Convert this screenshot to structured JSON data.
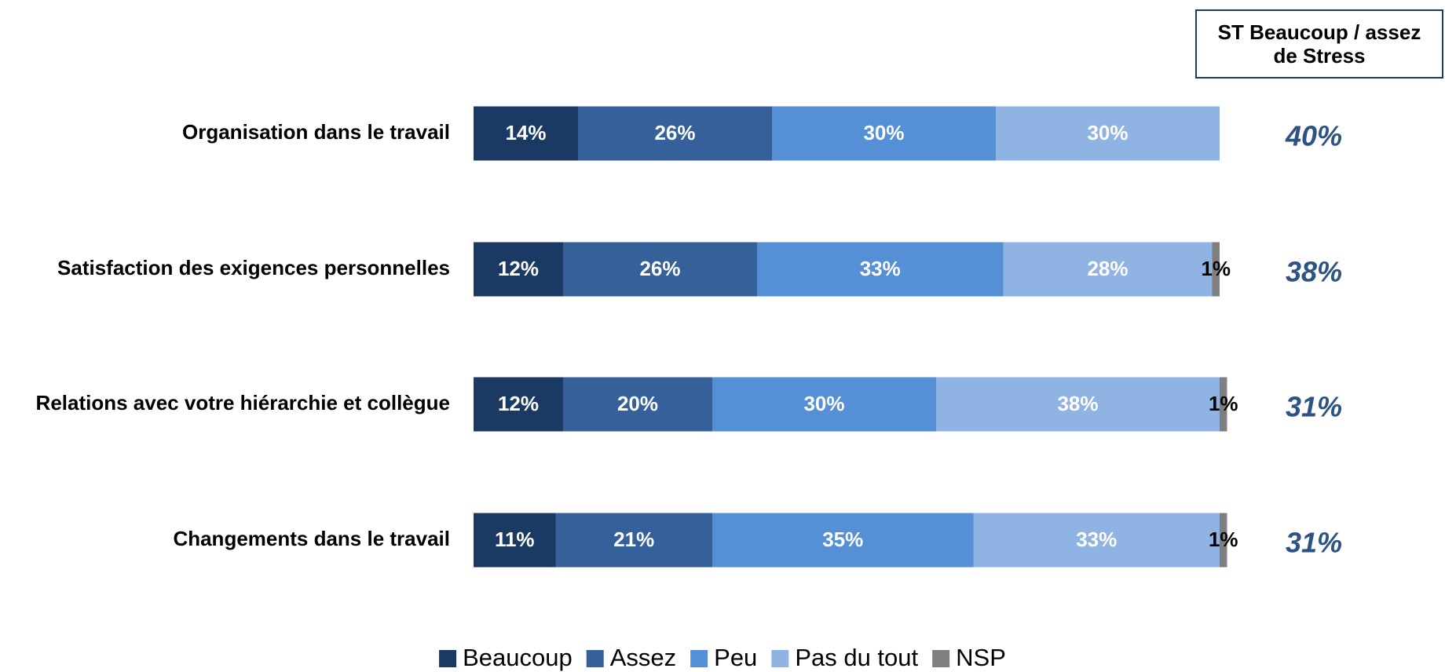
{
  "chart_data": {
    "type": "stacked-bar-horizontal",
    "categories": [
      "Organisation dans le travail",
      "Satisfaction des exigences personnelles",
      "Relations avec votre hiérarchie et collègue",
      "Changements dans le travail"
    ],
    "xlim": [
      0,
      100
    ],
    "series": [
      {
        "name": "Beaucoup",
        "color": "#1b3a63",
        "label_color": "#ffffff",
        "values": [
          14,
          12,
          12,
          11
        ],
        "value_labels": [
          "14%",
          "12%",
          "12%",
          "11%"
        ]
      },
      {
        "name": "Assez",
        "color": "#36609a",
        "label_color": "#ffffff",
        "values": [
          26,
          26,
          20,
          21
        ],
        "value_labels": [
          "26%",
          "26%",
          "20%",
          "21%"
        ]
      },
      {
        "name": "Peu",
        "color": "#558fd6",
        "label_color": "#ffffff",
        "values": [
          30,
          33,
          30,
          35
        ],
        "value_labels": [
          "30%",
          "33%",
          "30%",
          "35%"
        ]
      },
      {
        "name": "Pas du tout",
        "color": "#8fb4e3",
        "label_color": "#ffffff",
        "values": [
          30,
          28,
          38,
          33
        ],
        "value_labels": [
          "30%",
          "28%",
          "38%",
          "33%"
        ]
      },
      {
        "name": "NSP",
        "color": "#7f7f7f",
        "label_color": "#000000",
        "values": [
          null,
          1,
          1,
          1
        ],
        "value_labels": [
          null,
          "1%",
          "1%",
          "1%"
        ]
      }
    ],
    "side_title": "ST Beaucoup / assez de Stress",
    "side_color": "#2e5283",
    "side_values": [
      40,
      38,
      31,
      31
    ],
    "side_value_labels": [
      "40%",
      "38%",
      "31%",
      "31%"
    ],
    "legend": "bottom"
  }
}
